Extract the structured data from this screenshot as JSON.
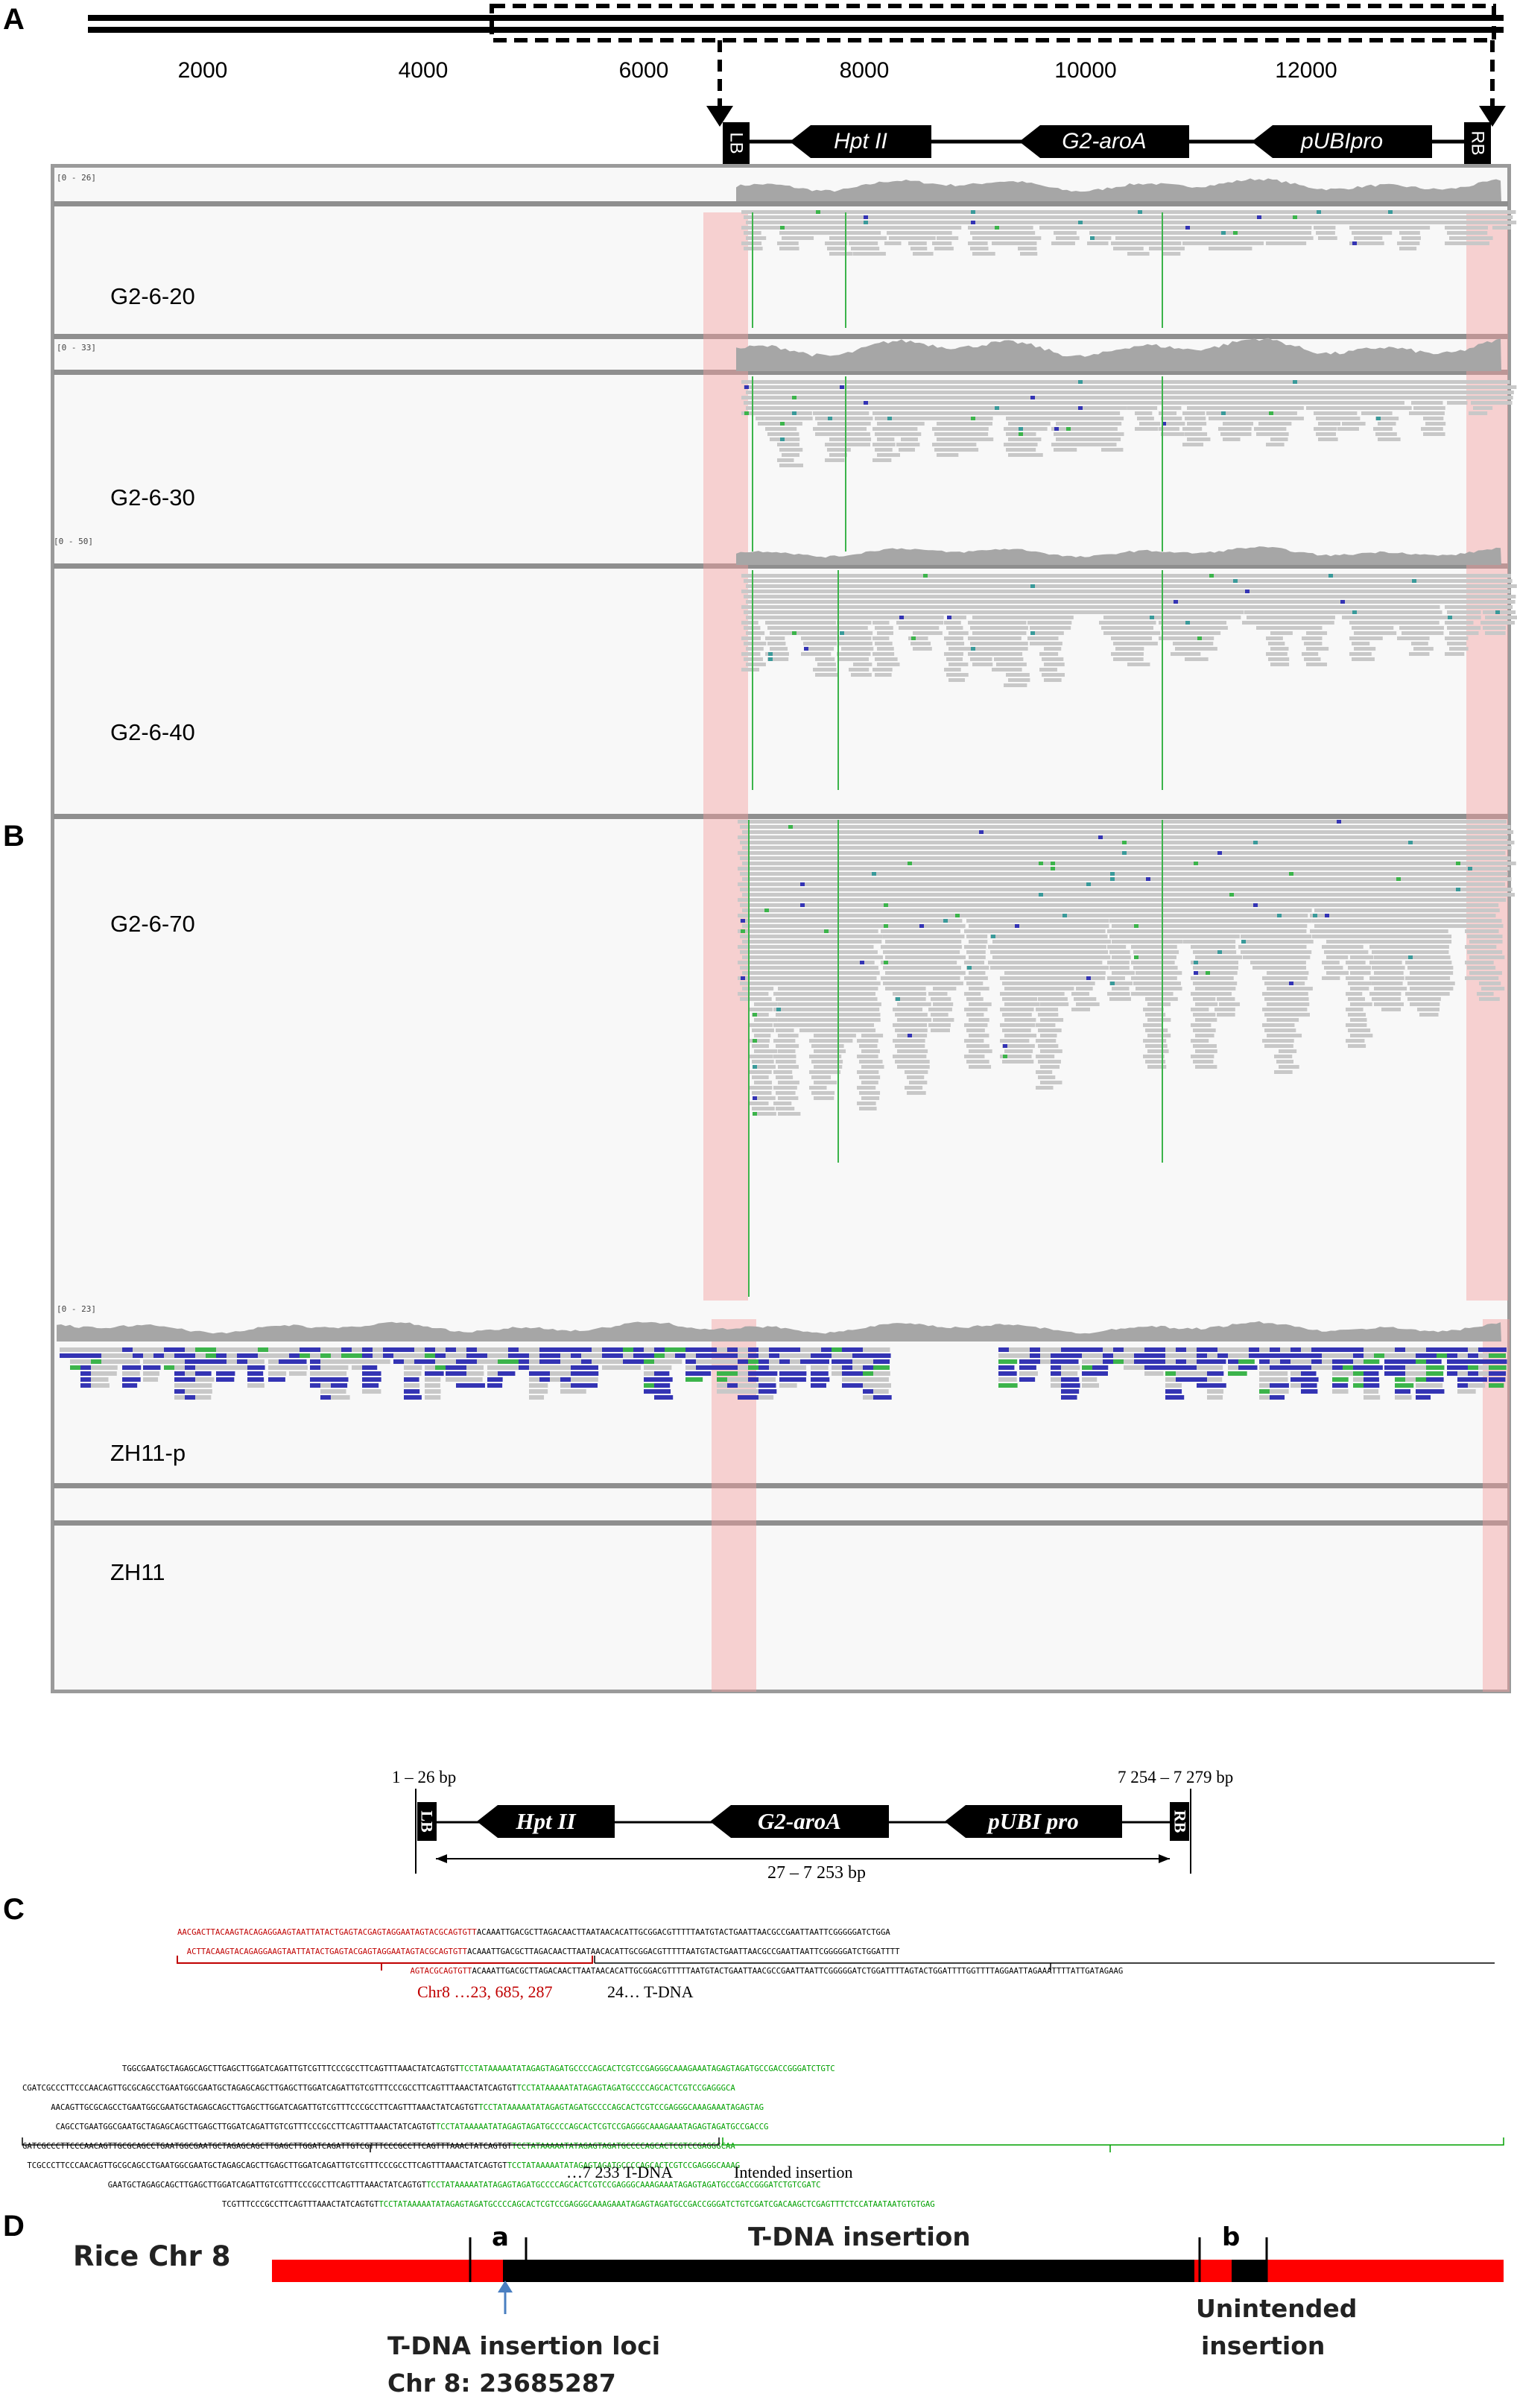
{
  "panel_letters": {
    "a": "A",
    "b": "B",
    "c": "C",
    "d": "D"
  },
  "ruler": {
    "ticks": [
      "2000",
      "4000",
      "6000",
      "8000",
      "10000",
      "12000"
    ]
  },
  "tdna_map_a": {
    "lb": "LB",
    "rb": "RB",
    "genes": [
      "Hpt II",
      "G2-aroA",
      "pUBIpro"
    ]
  },
  "tracks": [
    {
      "label": "G2-6-20",
      "scale": "[0 - 26]"
    },
    {
      "label": "G2-6-30",
      "scale": "[0 - 33]"
    },
    {
      "label": "G2-6-40",
      "scale": "[0 - 50]"
    },
    {
      "label": "G2-6-70",
      "scale": ""
    },
    {
      "label": "ZH11-p",
      "scale": "[0 - 23]"
    },
    {
      "label": "ZH11",
      "scale": ""
    }
  ],
  "tdna_map_b": {
    "lb": "LB",
    "rb": "RB",
    "genes": [
      "Hpt II",
      "G2-aroA",
      "pUBI pro"
    ],
    "left_range": "1 – 26 bp",
    "right_range": "7 254 – 7 279 bp",
    "span": "27 – 7 253 bp"
  },
  "junction_left": {
    "lines": [
      {
        "red": "AACGACTTACAAGTACAGAGGAAGTAATTATACTGAGTACGAGTAGGAATAGTACGCAGTGTT",
        "black": "ACAAATTGACGCTTAGACAACTTAATAACACATTGCGGACGTTTTTAATGTACTGAATTAACGCCGAATTAATTCGGGGGATCTGGA"
      },
      {
        "red": "  ACTTACAAGTACAGAGGAAGTAATTATACTGAGTACGAGTAGGAATAGTACGCAGTGTT",
        "black": "ACAAATTGACGCTTAGACAACTTAATAACACATTGCGGACGTTTTTAATGTACTGAATTAACGCCGAATTAATTCGGGGGATCTGGATTTT"
      },
      {
        "red": "                                                 AGTACGCAGTGTT",
        "black": "ACAAATTGACGCTTAGACAACTTAATAACACATTGCGGACGTTTTTAATGTACTGAATTAACGCCGAATTAATTCGGGGGATCTGGATTTTAGTACTGGATTTTGGTTTTAGGAATTAGAAATTTTATTGATAGAAG"
      }
    ],
    "chr_label": "Chr8  …23, 685, 287",
    "tdna_label": "24…  T-DNA"
  },
  "junction_right": {
    "lines": [
      {
        "black": "                     TGGCGAATGCTAGAGCAGCTTGAGCTTGGATCAGATTGTCGTTTCCCGCCTTCAGTTTAAACTATCAGTGT",
        "green": "TCCTATAAAAATATAGAGTAGATGCCCCAGCACTCGTCCGAGGGCAAAGAAATAGAGTAGATGCCGACCGGGATCTGTC"
      },
      {
        "black": "CGATCGCCCTTCCCAACAGTTGCGCAGCCTGAATGGCGAATGCTAGAGCAGCTTGAGCTTGGATCAGATTGTCGTTTCCCGCCTTCAGTTTAAACTATCAGTGT",
        "green": "TCCTATAAAAATATAGAGTAGATGCCCCAGCACTCGTCCGAGGGCA"
      },
      {
        "black": "      AACAGTTGCGCAGCCTGAATGGCGAATGCTAGAGCAGCTTGAGCTTGGATCAGATTGTCGTTTCCCGCCTTCAGTTTAAACTATCAGTGT",
        "green": "TCCTATAAAAATATAGAGTAGATGCCCCAGCACTCGTCCGAGGGCAAAGAAATAGAGTAG"
      },
      {
        "black": "       CAGCCTGAATGGCGAATGCTAGAGCAGCTTGAGCTTGGATCAGATTGTCGTTTCCCGCCTTCAGTTTAAACTATCAGTGT",
        "green": "TCCTATAAAAATATAGAGTAGATGCCCCAGCACTCGTCCGAGGGCAAAGAAATAGAGTAGATGCCGACCG"
      },
      {
        "black": "GATCGCCCTTCCCAACAGTTGCGCAGCCTGAATGGCGAATGCTAGAGCAGCTTGAGCTTGGATCAGATTGTCGTTTCCCGCCTTCAGTTTAAACTATCAGTGT",
        "green": "TCCTATAAAAATATAGAGTAGATGCCCCAGCACTCGTCCGAGGGCAA"
      },
      {
        "black": " TCGCCCTTCCCAACAGTTGCGCAGCCTGAATGGCGAATGCTAGAGCAGCTTGAGCTTGGATCAGATTGTCGTTTCCCGCCTTCAGTTTAAACTATCAGTGT",
        "green": "TCCTATAAAAATATAGAGTAGATGCCCCAGCACTCGTCCGAGGGCAAAG"
      },
      {
        "black": "                  GAATGCTAGAGCAGCTTGAGCTTGGATCAGATTGTCGTTTCCCGCCTTCAGTTTAAACTATCAGTGT",
        "green": "TCCTATAAAAATATAGAGTAGATGCCCCAGCACTCGTCCGAGGGCAAAGAAATAGAGTAGATGCCGACCGGGATCTGTCGATC"
      },
      {
        "black": "                                          TCGTTTCCCGCCTTCAGTTTAAACTATCAGTGT",
        "green": "TCCTATAAAAATATAGAGTAGATGCCCCAGCACTCGTCCGAGGGCAAAGAAATAGAGTAGATGCCGACCGGGATCTGTCGATCGACAAGCTCGAGTTTCTCCATAATAATGTGTGAG"
      }
    ],
    "tdna_label": "…7 233  T-DNA",
    "intended_label": "Intended insertion"
  },
  "panel_d": {
    "chr_label": "Rice Chr 8",
    "tdna_label": "T-DNA insertion",
    "a_label": "a",
    "b_label": "b",
    "unintended_label_1": "Unintended",
    "unintended_label_2": "insertion",
    "loci_label_1": "T-DNA insertion loci",
    "loci_label_2": "Chr 8: 23685287"
  },
  "colors": {
    "read": "#c8c8c8",
    "coverage": "#a6a6a6",
    "shade": "#f5a0a0",
    "mismatch_green": "#3cb44b",
    "mismatch_blue": "#3434b4",
    "mismatch_teal": "#3a9a9a",
    "chr_red": "#ff0000",
    "seq_red": "#c00000",
    "seq_green": "#00a000"
  }
}
